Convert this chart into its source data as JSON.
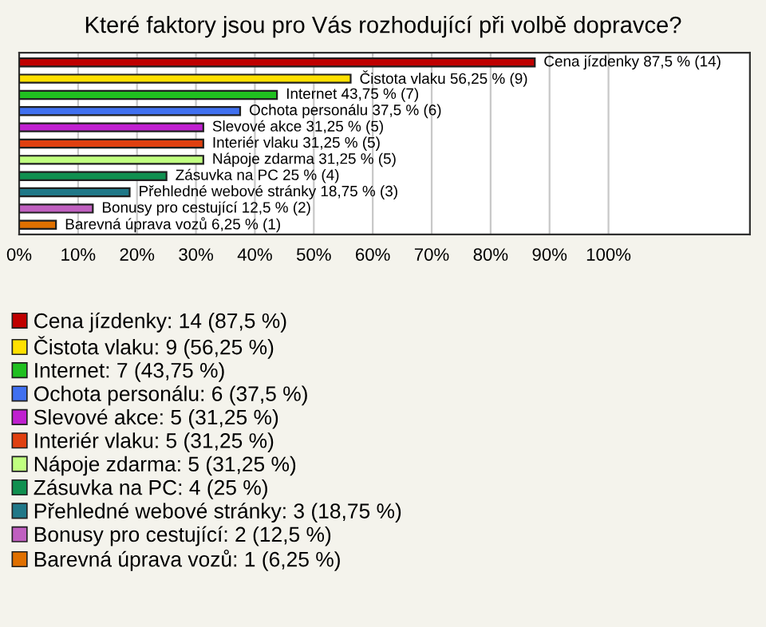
{
  "chart_data": {
    "type": "bar",
    "orientation": "horizontal",
    "title": "Které faktory jsou pro Vás rozhodující při volbě dopravce?",
    "categories": [
      null,
      null,
      null,
      null,
      null,
      null,
      null,
      null,
      null,
      null,
      null
    ],
    "xlim": [
      0,
      124
    ],
    "xticks": [
      {
        "value": 0,
        "label": "0%"
      },
      {
        "value": 10,
        "label": "10%"
      },
      {
        "value": 20,
        "label": "20%"
      },
      {
        "value": 30,
        "label": "30%"
      },
      {
        "value": 40,
        "label": "40%"
      },
      {
        "value": 50,
        "label": "50%"
      },
      {
        "value": 60,
        "label": "60%"
      },
      {
        "value": 70,
        "label": "70%"
      },
      {
        "value": 80,
        "label": "80%"
      },
      {
        "value": 90,
        "label": "90%"
      },
      {
        "value": 100,
        "label": "100%"
      }
    ],
    "grid": "x",
    "legend": "bottom",
    "tick_labels": "x",
    "series": [
      {
        "name": "Cena jízdenky: 14 (87,5 %)",
        "color": "#c00000",
        "values": [
          87.5,
          null,
          null,
          null,
          null,
          null,
          null,
          null,
          null,
          null,
          null
        ],
        "value_labels": [
          "Cena jízdenky 87,5 % (14)",
          null,
          null,
          null,
          null,
          null,
          null,
          null,
          null,
          null,
          null
        ]
      },
      {
        "name": "Čistota vlaku: 9 (56,25 %)",
        "color": "#ffe000",
        "values": [
          null,
          56.25,
          null,
          null,
          null,
          null,
          null,
          null,
          null,
          null,
          null
        ],
        "value_labels": [
          null,
          "Čistota vlaku 56,25 % (9)",
          null,
          null,
          null,
          null,
          null,
          null,
          null,
          null,
          null
        ]
      },
      {
        "name": "Internet: 7 (43,75 %)",
        "color": "#20c020",
        "values": [
          null,
          null,
          43.75,
          null,
          null,
          null,
          null,
          null,
          null,
          null,
          null
        ],
        "value_labels": [
          null,
          null,
          "Internet 43,75 % (7)",
          null,
          null,
          null,
          null,
          null,
          null,
          null,
          null
        ]
      },
      {
        "name": "Ochota personálu: 6 (37,5 %)",
        "color": "#4070f0",
        "values": [
          null,
          null,
          null,
          37.5,
          null,
          null,
          null,
          null,
          null,
          null,
          null
        ],
        "value_labels": [
          null,
          null,
          null,
          "Ochota personálu 37,5 % (6)",
          null,
          null,
          null,
          null,
          null,
          null,
          null
        ]
      },
      {
        "name": "Slevové akce: 5 (31,25 %)",
        "color": "#c020d0",
        "values": [
          null,
          null,
          null,
          null,
          31.25,
          null,
          null,
          null,
          null,
          null,
          null
        ],
        "value_labels": [
          null,
          null,
          null,
          null,
          "Slevové akce 31,25 % (5)",
          null,
          null,
          null,
          null,
          null,
          null
        ]
      },
      {
        "name": "Interiér vlaku: 5 (31,25 %)",
        "color": "#e04010",
        "values": [
          null,
          null,
          null,
          null,
          null,
          31.25,
          null,
          null,
          null,
          null,
          null
        ],
        "value_labels": [
          null,
          null,
          null,
          null,
          null,
          "Interiér vlaku 31,25 % (5)",
          null,
          null,
          null,
          null,
          null
        ]
      },
      {
        "name": "Nápoje zdarma: 5 (31,25 %)",
        "color": "#c0ff80",
        "values": [
          null,
          null,
          null,
          null,
          null,
          null,
          31.25,
          null,
          null,
          null,
          null
        ],
        "value_labels": [
          null,
          null,
          null,
          null,
          null,
          null,
          "Nápoje zdarma 31,25 % (5)",
          null,
          null,
          null,
          null
        ]
      },
      {
        "name": "Zásuvka na PC: 4 (25 %)",
        "color": "#109050",
        "values": [
          null,
          null,
          null,
          null,
          null,
          null,
          null,
          25,
          null,
          null,
          null
        ],
        "value_labels": [
          null,
          null,
          null,
          null,
          null,
          null,
          null,
          "Zásuvka na PC 25 % (4)",
          null,
          null,
          null
        ]
      },
      {
        "name": "Přehledné webové stránky: 3 (18,75 %)",
        "color": "#207888",
        "values": [
          null,
          null,
          null,
          null,
          null,
          null,
          null,
          null,
          18.75,
          null,
          null
        ],
        "value_labels": [
          null,
          null,
          null,
          null,
          null,
          null,
          null,
          null,
          "Přehledné webové stránky 18,75 % (3)",
          null,
          null
        ]
      },
      {
        "name": "Bonusy pro cestující: 2 (12,5 %)",
        "color": "#c060c0",
        "values": [
          null,
          null,
          null,
          null,
          null,
          null,
          null,
          null,
          null,
          12.5,
          null
        ],
        "value_labels": [
          null,
          null,
          null,
          null,
          null,
          null,
          null,
          null,
          null,
          "Bonusy pro cestující 12,5 % (2)",
          null
        ]
      },
      {
        "name": "Barevná úprava vozů: 1 (6,25 %)",
        "color": "#e07000",
        "values": [
          null,
          null,
          null,
          null,
          null,
          null,
          null,
          null,
          null,
          null,
          6.25
        ],
        "value_labels": [
          null,
          null,
          null,
          null,
          null,
          null,
          null,
          null,
          null,
          null,
          "Barevná úprava vozů 6,25 % (1)"
        ]
      }
    ]
  }
}
